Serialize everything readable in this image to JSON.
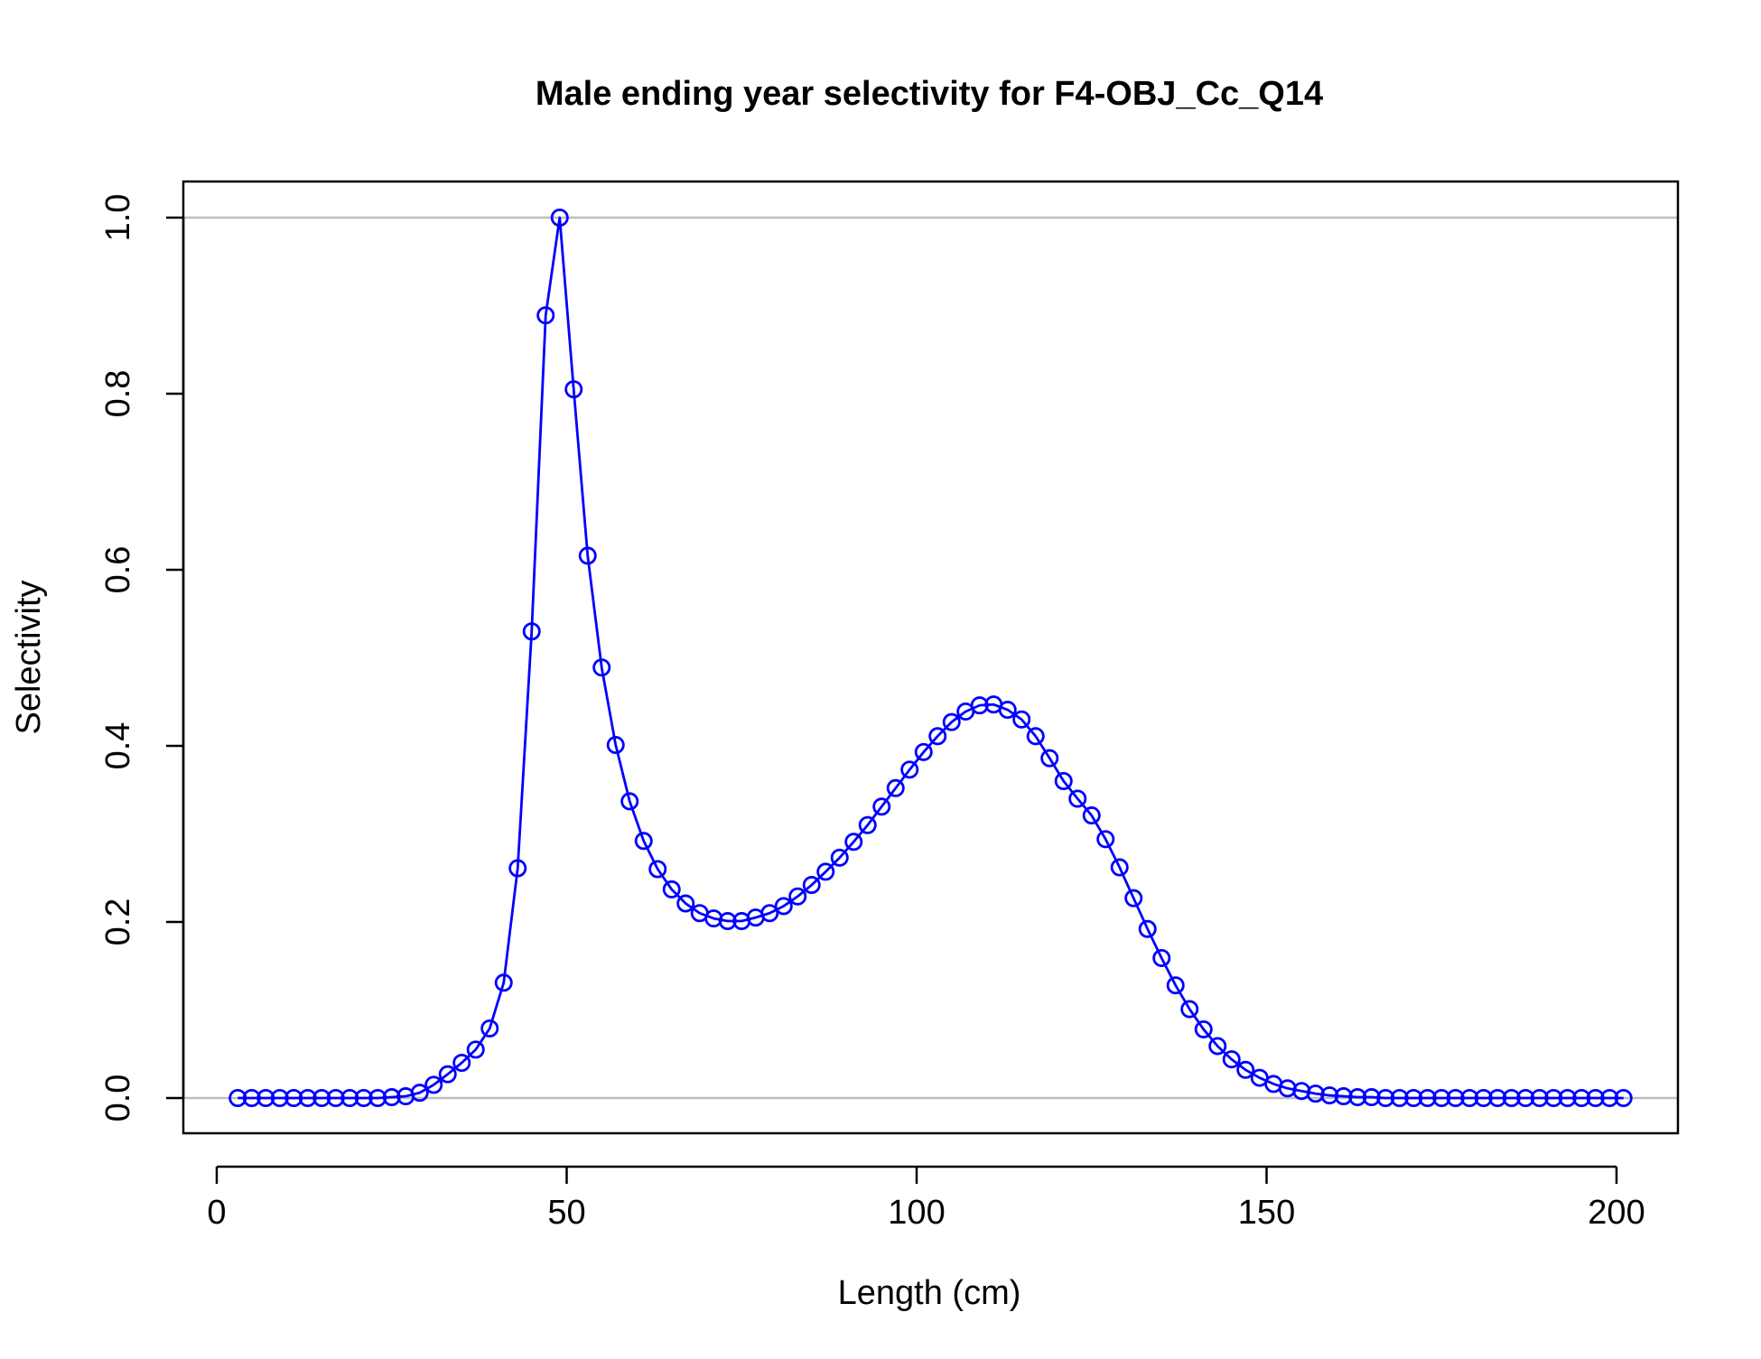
{
  "chart_data": {
    "type": "line",
    "title": "Male ending year selectivity for F4-OBJ_Cc_Q14",
    "xlabel": "Length (cm)",
    "ylabel": "Selectivity",
    "xlim": [
      0,
      210
    ],
    "ylim": [
      0,
      1.0
    ],
    "x_ticks": [
      0,
      50,
      100,
      150,
      200
    ],
    "y_ticks": [
      0.0,
      0.2,
      0.4,
      0.6,
      0.8,
      1.0
    ],
    "x_tick_labels": [
      "0",
      "50",
      "100",
      "150",
      "200"
    ],
    "y_tick_labels": [
      "0.0",
      "0.2",
      "0.4",
      "0.6",
      "0.8",
      "1.0"
    ],
    "reference_lines_y": [
      0,
      1
    ],
    "grid": false,
    "series": [
      {
        "color": "#0000ff",
        "reference_line_color": "#bebebe",
        "marker": "open-circle",
        "x": [
          3,
          5,
          7,
          9,
          11,
          13,
          15,
          17,
          19,
          21,
          23,
          25,
          27,
          29,
          31,
          33,
          35,
          37,
          39,
          41,
          43,
          45,
          47,
          49,
          51,
          53,
          55,
          57,
          59,
          61,
          63,
          65,
          67,
          69,
          71,
          73,
          75,
          77,
          79,
          81,
          83,
          85,
          87,
          89,
          91,
          93,
          95,
          97,
          99,
          101,
          103,
          105,
          107,
          109,
          111,
          113,
          115,
          117,
          119,
          121,
          123,
          125,
          127,
          129,
          131,
          133,
          135,
          137,
          139,
          141,
          143,
          145,
          147,
          149,
          151,
          153,
          155,
          157,
          159,
          161,
          163,
          165,
          167,
          169,
          171,
          173,
          175,
          177,
          179,
          181,
          183,
          185,
          187,
          189,
          191,
          193,
          195,
          197,
          199,
          201
        ],
        "y": [
          0.0,
          0.0,
          0.0,
          0.0,
          0.0,
          0.0,
          0.0,
          0.0,
          0.0,
          0.0,
          0.0,
          0.001,
          0.002,
          0.006,
          0.015,
          0.027,
          0.04,
          0.055,
          0.079,
          0.131,
          0.261,
          0.53,
          0.889,
          1.0,
          0.805,
          0.616,
          0.489,
          0.401,
          0.337,
          0.292,
          0.26,
          0.237,
          0.221,
          0.21,
          0.204,
          0.201,
          0.201,
          0.205,
          0.21,
          0.218,
          0.229,
          0.242,
          0.257,
          0.273,
          0.291,
          0.31,
          0.331,
          0.352,
          0.373,
          0.393,
          0.411,
          0.427,
          0.439,
          0.446,
          0.447,
          0.441,
          0.43,
          0.411,
          0.386,
          0.36,
          0.34,
          0.321,
          0.294,
          0.262,
          0.227,
          0.192,
          0.159,
          0.128,
          0.101,
          0.078,
          0.059,
          0.044,
          0.032,
          0.023,
          0.016,
          0.011,
          0.008,
          0.005,
          0.003,
          0.002,
          0.001,
          0.001,
          0.0,
          0.0,
          0.0,
          0.0,
          0.0,
          0.0,
          0.0,
          0.0,
          0.0,
          0.0,
          0.0,
          0.0,
          0.0,
          0.0,
          0.0,
          0.0,
          0.0,
          0.0
        ]
      }
    ]
  }
}
